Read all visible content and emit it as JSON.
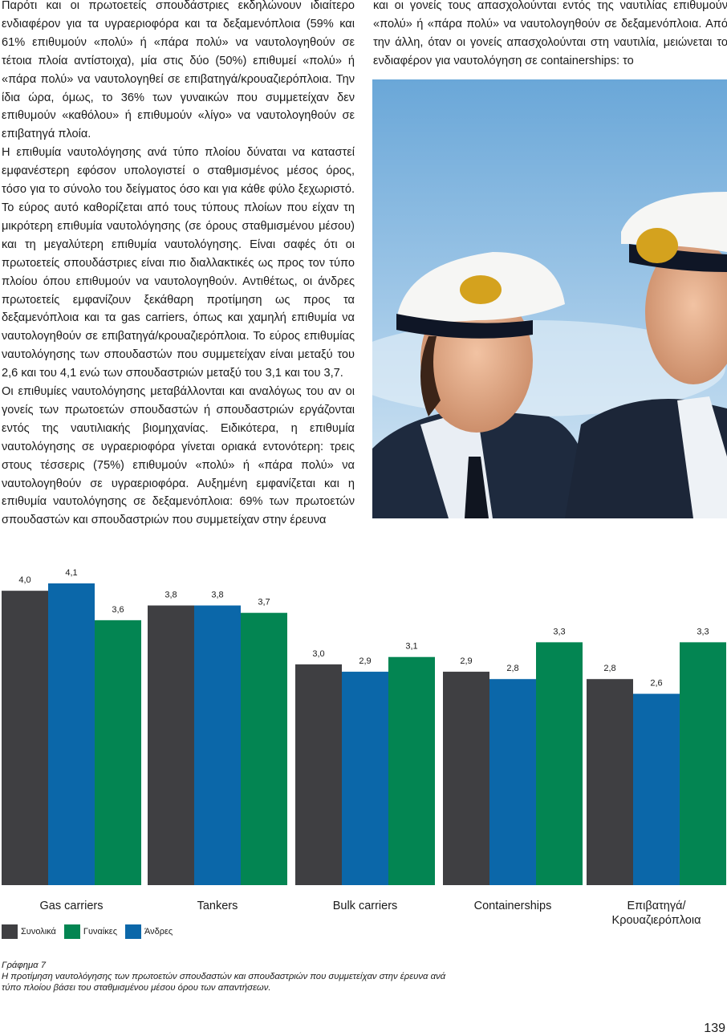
{
  "body_left": [
    "Παρότι και οι πρωτοετείς σπουδάστριες εκδηλώνουν ιδιαίτερο ενδιαφέρον για τα υγραεριοφόρα και τα δεξαμενόπλοια (59% και 61% επιθυμούν «πολύ» ή «πάρα πολύ» να ναυτολογηθούν σε τέτοια πλοία αντίστοιχα), μία στις δύο (50%) επιθυμεί «πολύ» ή «πάρα πολύ» να ναυτολογηθεί σε επιβατηγά/κρουαζιερόπλοια. Την ίδια ώρα, όμως, το 36% των γυναικών που συμμετείχαν δεν επιθυμούν «καθόλου» ή επιθυμούν «λίγο» να ναυτολογηθούν σε επιβατηγά πλοία.",
    "Η επιθυμία ναυτολόγησης ανά τύπο πλοίου δύναται να καταστεί εμφανέστερη εφόσον υπολογιστεί ο σταθμισμένος μέσος όρος, τόσο για το σύνολο του δείγματος όσο και για κάθε φύλο ξεχωριστό. Το εύρος αυτό καθορίζεται από τους τύπους πλοίων που είχαν τη μικρότερη επιθυμία ναυτολόγησης (σε όρους σταθμισμένου μέσου) και τη μεγαλύτερη επιθυμία ναυτολόγησης. Είναι σαφές ότι οι πρωτοετείς σπουδάστριες είναι πιο διαλλακτικές ως προς τον τύπο πλοίου όπου επιθυμούν να ναυτολογηθούν. Αντιθέτως, οι άνδρες πρωτοετείς εμφανίζουν ξεκάθαρη προτίμηση ως προς τα δεξαμενόπλοια και τα gas carriers, όπως και χαμηλή επιθυμία να ναυτολογηθούν σε επιβατηγά/κρουαζιερόπλοια. Το εύρος επιθυμίας ναυτολόγησης των σπουδαστών που συμμετείχαν είναι μεταξύ του 2,6 και του 4,1 ενώ των σπουδαστριών μεταξύ του 3,1 και του 3,7.",
    "Οι επιθυμίες ναυτολόγησης μεταβάλλονται και αναλόγως του αν οι γονείς των πρωτοετών σπουδαστών ή σπουδαστριών εργάζονται εντός της ναυτιλιακής βιομηχανίας. Ειδικότερα, η επιθυμία ναυτολόγησης σε υγραεριοφόρα γίνεται οριακά εντονότερη: τρεις στους τέσσερις (75%) επιθυμούν «πολύ» ή «πάρα πολύ» να ναυτολογηθούν σε υγραεριοφόρα. Αυξημένη εμφανίζεται και η επιθυμία ναυτολόγησης σε δεξαμενόπλοια: 69% των πρωτοετών σπουδαστών και σπουδαστριών που συμμετείχαν στην έρευνα"
  ],
  "body_right": "και οι γονείς τους απασχολούνται εντός της ναυτιλίας επιθυμούν «πολύ» ή «πάρα πολύ» να ναυτολογηθούν σε δεξαμενόπλοια. Από την άλλη, όταν οι γονείς απασχολούνται στη ναυτιλία, μειώνεται το ενδιαφέρον για ναυτολόγηση σε containerships: το",
  "chart_data": {
    "type": "bar",
    "categories": [
      "Gas carriers",
      "Tankers",
      "Bulk carriers",
      "Containerships",
      "Επιβατηγά/\nΚρουαζιερόπλοια"
    ],
    "series": [
      {
        "name": "Συνολικά",
        "color": "#3f3f42",
        "values": [
          4.0,
          3.8,
          3.0,
          2.9,
          2.8
        ],
        "labels": [
          "4,0",
          "3,8",
          "3,0",
          "2,9",
          "2,8"
        ]
      },
      {
        "name": "Άνδρες",
        "color": "#0b67a9",
        "values": [
          4.1,
          3.8,
          2.9,
          2.8,
          2.6
        ],
        "labels": [
          "4,1",
          "3,8",
          "2,9",
          "2,8",
          "2,6"
        ]
      },
      {
        "name": "Γυναίκες",
        "color": "#038552",
        "values": [
          3.6,
          3.7,
          3.1,
          3.3,
          3.3
        ],
        "labels": [
          "3,6",
          "3,7",
          "3,1",
          "3,3",
          "3,3"
        ]
      }
    ],
    "legend_order": [
      "Συνολικά",
      "Γυναίκες",
      "Άνδρες"
    ],
    "ylim": [
      0,
      4.1
    ],
    "grid": false,
    "legend_position": "bottom-left"
  },
  "caption": {
    "label": "Γράφημα 7",
    "text": "Η προτίμηση ναυτολόγησης των πρωτοετών σπουδαστών και σπουδαστριών που συμμετείχαν στην έρευνα ανά τύπο πλοίου βάσει του σταθμισμένου μέσου όρου των απαντήσεων."
  },
  "page_number": "139"
}
